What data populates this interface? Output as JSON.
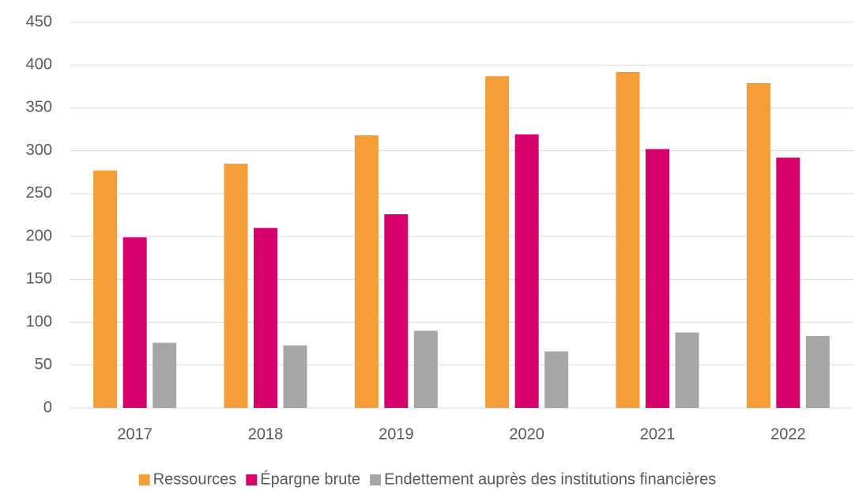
{
  "chart_data": {
    "type": "bar",
    "categories": [
      "2017",
      "2018",
      "2019",
      "2020",
      "2021",
      "2022"
    ],
    "series": [
      {
        "name": "Ressources",
        "color": "#f59d36",
        "values": [
          277,
          285,
          318,
          387,
          392,
          379
        ]
      },
      {
        "name": "Épargne brute",
        "color": "#d6006f",
        "values": [
          199,
          210,
          226,
          319,
          302,
          292
        ]
      },
      {
        "name": "Endettement auprès des institutions financières",
        "color": "#a6a6a6",
        "values": [
          76,
          73,
          90,
          66,
          88,
          84
        ]
      }
    ],
    "ylim": [
      0,
      450
    ],
    "yticks": [
      0,
      50,
      100,
      150,
      200,
      250,
      300,
      350,
      400,
      450
    ],
    "grid": true,
    "legend": "bottom"
  }
}
